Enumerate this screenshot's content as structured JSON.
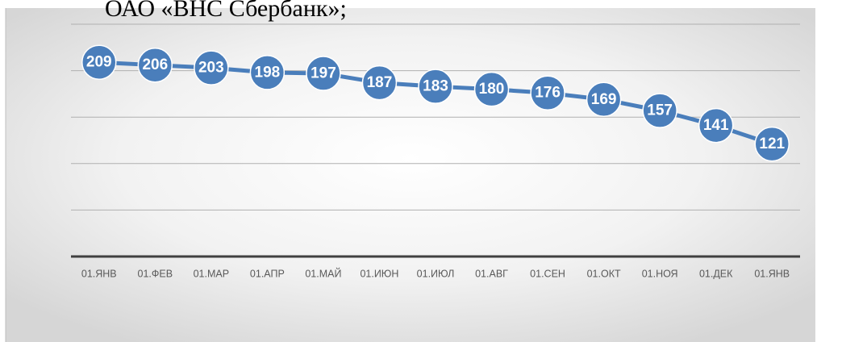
{
  "header_text": "ОАО «ВНС Сбербанк»;",
  "chart_data": {
    "type": "line",
    "categories": [
      "01.ЯНВ",
      "01.ФЕВ",
      "01.МАР",
      "01.АПР",
      "01.МАЙ",
      "01.ИЮН",
      "01.ИЮЛ",
      "01.АВГ",
      "01.СЕН",
      "01.ОКТ",
      "01.НОЯ",
      "01.ДЕК",
      "01.ЯНВ"
    ],
    "values": [
      209,
      206,
      203,
      198,
      197,
      187,
      183,
      180,
      176,
      169,
      157,
      141,
      121
    ],
    "color": "#4a7ebb",
    "ylim": [
      0,
      250
    ],
    "yticks": [
      0,
      50,
      100,
      150,
      200,
      250
    ],
    "grid": true
  }
}
